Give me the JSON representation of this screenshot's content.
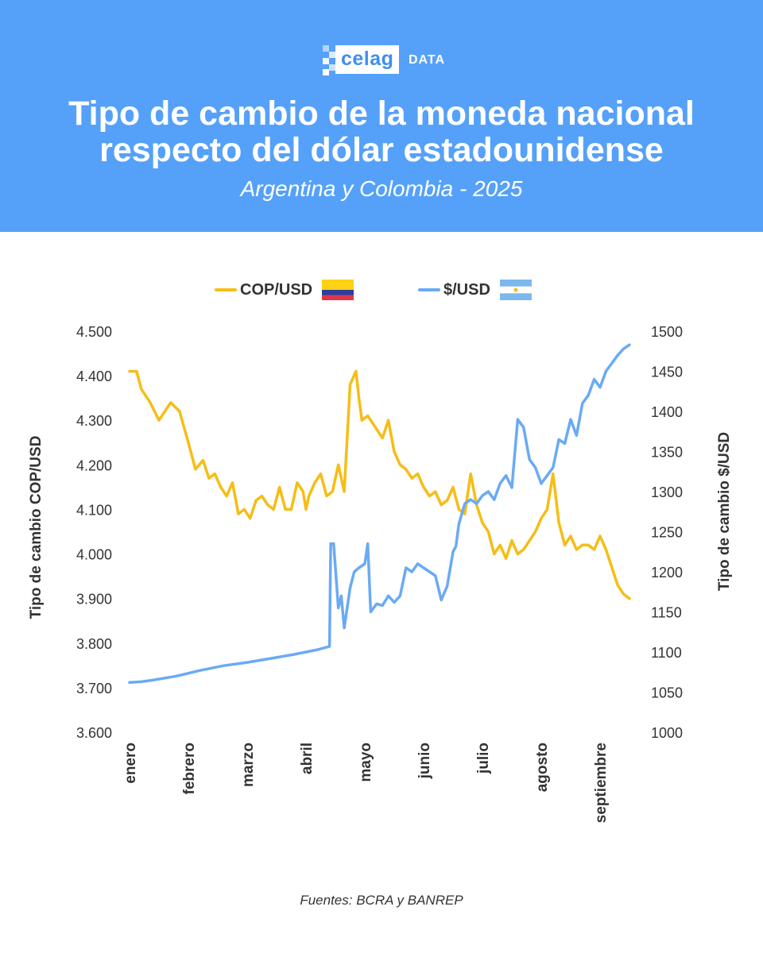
{
  "header": {
    "logo_word": "celag",
    "logo_suffix": "DATA",
    "title_line1": "Tipo de cambio de la moneda nacional",
    "title_line2": "respecto del dólar estadounidense",
    "subtitle": "Argentina y Colombia - 2025"
  },
  "source": "Fuentes: BCRA y BANREP",
  "colors": {
    "header_bg": "#55a1fa",
    "cop_series": "#f6bd16",
    "ars_series": "#6aaaf5"
  },
  "chart_data": {
    "type": "line",
    "title": "Tipo de cambio de la moneda nacional respecto del dólar estadounidense",
    "subtitle": "Argentina y Colombia - 2025",
    "x_categories": [
      "enero",
      "febrero",
      "marzo",
      "abril",
      "mayo",
      "junio",
      "julio",
      "agosto",
      "septiembre"
    ],
    "y_left": {
      "label": "Tipo de cambio COP/USD",
      "range": [
        3600,
        4500
      ],
      "ticks": [
        3600,
        3700,
        3800,
        3900,
        4000,
        4100,
        4200,
        4300,
        4400,
        4500
      ],
      "tick_labels": [
        "3.600",
        "3.700",
        "3.800",
        "3.900",
        "4.000",
        "4.100",
        "4.200",
        "4.300",
        "4.400",
        "4.500"
      ]
    },
    "y_right": {
      "label": "Tipo de cambio $/USD",
      "range": [
        1000,
        1500
      ],
      "ticks": [
        1000,
        1050,
        1100,
        1150,
        1200,
        1250,
        1300,
        1350,
        1400,
        1450,
        1500
      ],
      "tick_labels": [
        "1000",
        "1050",
        "1100",
        "1150",
        "1200",
        "1250",
        "1300",
        "1350",
        "1400",
        "1450",
        "1500"
      ]
    },
    "grid": false,
    "legend": "top-center",
    "series": [
      {
        "name": "COP/USD",
        "axis": "left",
        "flag": "colombia",
        "x": [
          0,
          0.12,
          0.2,
          0.35,
          0.5,
          0.7,
          0.85,
          1.0,
          1.12,
          1.25,
          1.35,
          1.45,
          1.55,
          1.65,
          1.75,
          1.85,
          1.95,
          2.05,
          2.15,
          2.25,
          2.35,
          2.45,
          2.55,
          2.65,
          2.75,
          2.85,
          2.95,
          3.0,
          3.05,
          3.15,
          3.25,
          3.35,
          3.45,
          3.55,
          3.65,
          3.75,
          3.85,
          3.9,
          3.95,
          4.05,
          4.1,
          4.2,
          4.3,
          4.4,
          4.5,
          4.6,
          4.7,
          4.8,
          4.9,
          5.0,
          5.1,
          5.2,
          5.3,
          5.4,
          5.5,
          5.6,
          5.7,
          5.8,
          5.9,
          6.0,
          6.1,
          6.2,
          6.3,
          6.4,
          6.5,
          6.6,
          6.7,
          6.8,
          6.9,
          7.0,
          7.1,
          7.2,
          7.3,
          7.4,
          7.5,
          7.6,
          7.7,
          7.8,
          7.9,
          8.0,
          8.1,
          8.2,
          8.3,
          8.4,
          8.5
        ],
        "values": [
          4410,
          4410,
          4370,
          4340,
          4300,
          4340,
          4320,
          4250,
          4190,
          4210,
          4170,
          4180,
          4150,
          4130,
          4160,
          4090,
          4100,
          4080,
          4120,
          4130,
          4110,
          4100,
          4150,
          4100,
          4100,
          4160,
          4140,
          4100,
          4130,
          4160,
          4180,
          4130,
          4140,
          4200,
          4140,
          4380,
          4410,
          4350,
          4300,
          4310,
          4300,
          4280,
          4260,
          4300,
          4230,
          4200,
          4190,
          4170,
          4180,
          4150,
          4130,
          4140,
          4110,
          4120,
          4150,
          4100,
          4090,
          4180,
          4110,
          4070,
          4050,
          4000,
          4020,
          3990,
          4030,
          4000,
          4010,
          4030,
          4050,
          4080,
          4100,
          4180,
          4070,
          4020,
          4040,
          4010,
          4020,
          4020,
          4010,
          4040,
          4010,
          3970,
          3930,
          3910,
          3900
        ]
      },
      {
        "name": "$/USD",
        "axis": "right",
        "flag": "argentina",
        "x": [
          0,
          0.2,
          0.4,
          0.8,
          1.2,
          1.6,
          2.0,
          2.4,
          2.8,
          3.0,
          3.2,
          3.4,
          3.42,
          3.47,
          3.55,
          3.6,
          3.65,
          3.75,
          3.82,
          3.9,
          4.0,
          4.05,
          4.1,
          4.2,
          4.3,
          4.4,
          4.5,
          4.6,
          4.7,
          4.8,
          4.9,
          5.0,
          5.1,
          5.2,
          5.3,
          5.4,
          5.5,
          5.55,
          5.6,
          5.7,
          5.8,
          5.9,
          6.0,
          6.1,
          6.2,
          6.3,
          6.4,
          6.5,
          6.6,
          6.7,
          6.8,
          6.9,
          7.0,
          7.1,
          7.2,
          7.3,
          7.4,
          7.5,
          7.6,
          7.7,
          7.8,
          7.9,
          8.0,
          8.1,
          8.2,
          8.3,
          8.4,
          8.5
        ],
        "values": [
          1062,
          1063,
          1065,
          1070,
          1077,
          1083,
          1087,
          1092,
          1097,
          1100,
          1103,
          1107,
          1235,
          1235,
          1155,
          1170,
          1130,
          1180,
          1200,
          1205,
          1210,
          1235,
          1150,
          1160,
          1158,
          1170,
          1162,
          1170,
          1205,
          1200,
          1210,
          1205,
          1200,
          1195,
          1165,
          1182,
          1225,
          1232,
          1260,
          1285,
          1290,
          1285,
          1295,
          1300,
          1290,
          1310,
          1320,
          1305,
          1390,
          1380,
          1340,
          1330,
          1310,
          1320,
          1330,
          1365,
          1360,
          1390,
          1370,
          1410,
          1420,
          1440,
          1430,
          1450,
          1460,
          1470,
          1478,
          1483
        ]
      }
    ]
  }
}
